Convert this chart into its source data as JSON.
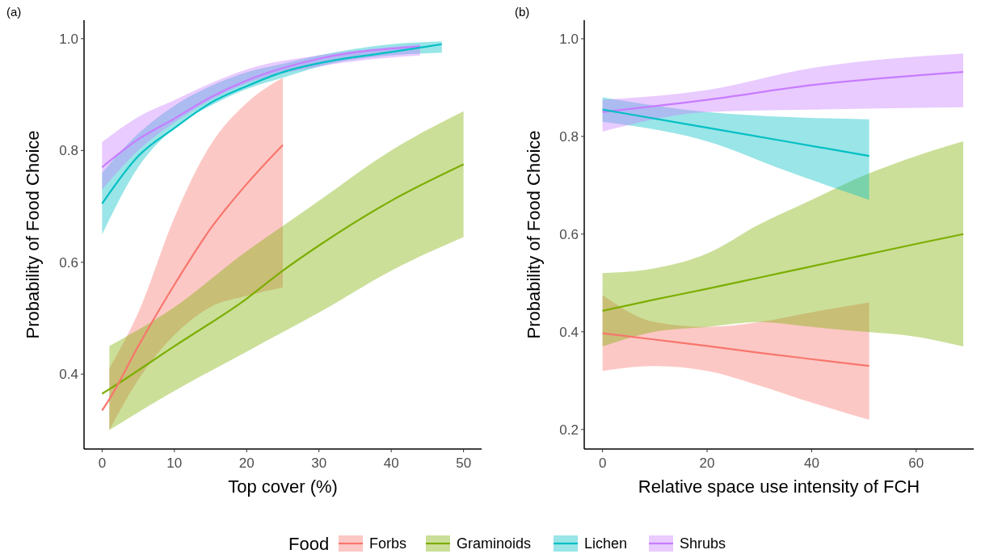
{
  "chart_data": [
    {
      "type": "line",
      "title": "(a)",
      "xlabel": "Top cover (%)",
      "ylabel": "Probability of Food Choice",
      "xlim": [
        -2.5,
        52.5
      ],
      "ylim": [
        0.266,
        1.033
      ],
      "xticks": [
        0,
        10,
        20,
        30,
        40,
        50
      ],
      "yticks": [
        {
          "value": 0.4,
          "label": "0.4"
        },
        {
          "value": 0.6,
          "label": "0.6"
        },
        {
          "value": 0.8,
          "label": "0.8"
        },
        {
          "value": 1.0,
          "label": "1.0"
        }
      ],
      "legend": "bottom",
      "legend_title": "Food",
      "series": [
        {
          "name": "Forbs",
          "color": "#f8766d",
          "x": [
            0,
            1,
            5,
            10,
            15,
            20,
            25
          ],
          "values": [
            0.335,
            0.355,
            0.45,
            0.56,
            0.66,
            0.74,
            0.81
          ],
          "lower": [
            null,
            0.3,
            0.39,
            0.47,
            0.52,
            0.54,
            0.555
          ],
          "upper": [
            null,
            0.41,
            0.51,
            0.68,
            0.81,
            0.885,
            0.93
          ]
        },
        {
          "name": "Graminoids",
          "color": "#7cae00",
          "x": [
            0,
            1,
            10,
            20,
            25,
            30,
            40,
            50
          ],
          "values": [
            0.365,
            0.373,
            0.45,
            0.535,
            0.585,
            0.63,
            0.71,
            0.775
          ],
          "lower": [
            null,
            0.3,
            0.37,
            0.44,
            0.475,
            0.51,
            0.585,
            0.645
          ],
          "upper": [
            null,
            0.45,
            0.52,
            0.62,
            0.665,
            0.71,
            0.8,
            0.87
          ]
        },
        {
          "name": "Lichen",
          "color": "#00bfc4",
          "x": [
            0,
            5,
            10,
            15,
            20,
            25,
            30,
            40,
            47
          ],
          "values": [
            0.705,
            0.79,
            0.84,
            0.885,
            0.915,
            0.94,
            0.956,
            0.976,
            0.99
          ],
          "lower": [
            0.65,
            0.77,
            0.84,
            0.88,
            0.91,
            0.93,
            0.95,
            0.97,
            0.975
          ],
          "upper": [
            0.76,
            0.83,
            0.88,
            0.915,
            0.94,
            0.955,
            0.97,
            0.99,
            0.995
          ]
        },
        {
          "name": "Shrubs",
          "color": "#c77cff",
          "x": [
            0,
            5,
            10,
            15,
            20,
            30,
            44
          ],
          "values": [
            0.77,
            0.82,
            0.857,
            0.895,
            0.925,
            0.964,
            0.986
          ],
          "lower": [
            0.73,
            0.8,
            0.85,
            0.89,
            0.92,
            0.95,
            0.97
          ],
          "upper": [
            0.815,
            0.86,
            0.89,
            0.92,
            0.945,
            0.97,
            0.99
          ]
        }
      ]
    },
    {
      "type": "line",
      "title": "(b)",
      "xlabel": "Relative space use intensity of FCH",
      "ylabel": "Probability of Food Choice",
      "xlim": [
        -3.5,
        71
      ],
      "ylim": [
        0.16,
        1.038
      ],
      "xticks": [
        0,
        20,
        40,
        60
      ],
      "yticks": [
        0.2,
        0.4,
        0.6,
        0.8,
        {
          "value": 1.0,
          "label": "1.0"
        }
      ],
      "series": [
        {
          "color": "#f8766d",
          "x": [
            0,
            10,
            20,
            30,
            40,
            51
          ],
          "values": [
            0.397,
            0.384,
            0.371,
            0.357,
            0.344,
            0.33
          ],
          "lower": [
            0.32,
            0.33,
            0.32,
            0.29,
            0.255,
            0.22
          ],
          "upper": [
            0.475,
            0.42,
            0.41,
            0.42,
            0.44,
            0.46
          ]
        },
        {
          "color": "#7cae00",
          "x": [
            0,
            10,
            20,
            30,
            40,
            50,
            60,
            69
          ],
          "values": [
            0.443,
            0.466,
            0.488,
            0.511,
            0.534,
            0.557,
            0.58,
            0.6
          ],
          "lower": [
            0.37,
            0.4,
            0.41,
            0.42,
            0.41,
            0.4,
            0.39,
            0.37
          ],
          "upper": [
            0.52,
            0.53,
            0.56,
            0.62,
            0.67,
            0.72,
            0.76,
            0.79
          ]
        },
        {
          "color": "#00bfc4",
          "x": [
            0,
            20,
            35,
            51
          ],
          "values": [
            0.855,
            0.818,
            0.79,
            0.76
          ],
          "lower": [
            0.83,
            0.79,
            0.73,
            0.67
          ],
          "upper": [
            0.88,
            0.85,
            0.84,
            0.835
          ]
        },
        {
          "color": "#c77cff",
          "x": [
            0,
            20,
            40,
            69
          ],
          "values": [
            0.85,
            0.875,
            0.905,
            0.932
          ],
          "lower": [
            0.81,
            0.85,
            0.855,
            0.86
          ],
          "upper": [
            0.875,
            0.895,
            0.94,
            0.97
          ]
        }
      ]
    }
  ]
}
